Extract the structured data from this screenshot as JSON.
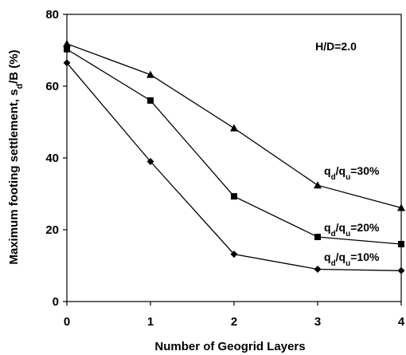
{
  "chart_data": {
    "type": "line",
    "x": [
      0,
      1,
      2,
      3,
      4
    ],
    "xlabel": "Number of Geogrid Layers",
    "ylabel": "Maximum footing settlement, s_d/B (%)",
    "ylabel_parts": [
      "Maximum footing settlement, s",
      "d",
      "/B (%)"
    ],
    "xlim": [
      0,
      4
    ],
    "ylim": [
      0,
      80
    ],
    "xticks": [
      "0",
      "1",
      "2",
      "3",
      "4"
    ],
    "yticks": [
      "0",
      "20",
      "40",
      "60",
      "80"
    ],
    "grid": false,
    "legend": "none",
    "annotation": "H/D=2.0",
    "series": [
      {
        "name": "qd/qu=10%",
        "label_parts": [
          "q",
          "d",
          "/q",
          "u",
          "=10%"
        ],
        "marker": "diamond",
        "values": [
          66.5,
          39,
          13.2,
          9,
          8.6
        ]
      },
      {
        "name": "qd/qu=20%",
        "label_parts": [
          "q",
          "d",
          "/q",
          "u",
          "=20%"
        ],
        "marker": "square",
        "values": [
          70.3,
          56,
          29.3,
          18,
          16
        ]
      },
      {
        "name": "qd/qu=30%",
        "label_parts": [
          "q",
          "d",
          "/q",
          "u",
          "=30%"
        ],
        "marker": "triangle",
        "values": [
          71.8,
          63.2,
          48.3,
          32.4,
          26.1
        ]
      }
    ],
    "colors": {
      "line": "#000000",
      "background": "#ffffff"
    }
  }
}
